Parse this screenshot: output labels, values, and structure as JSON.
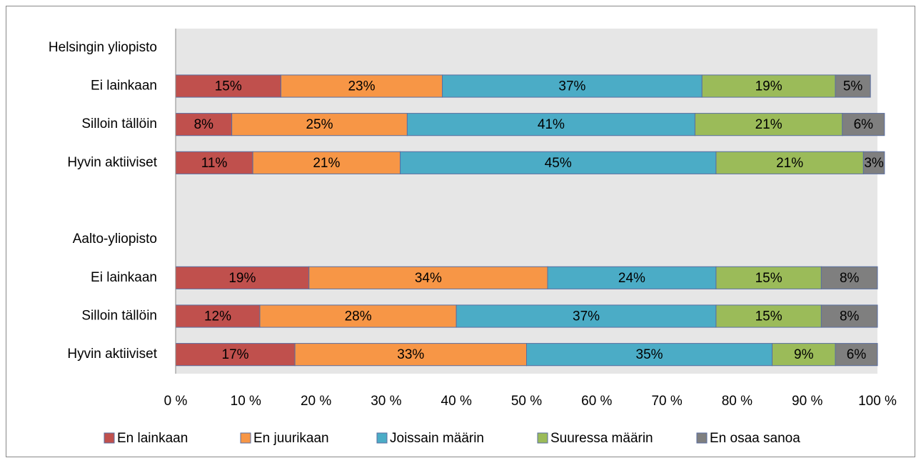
{
  "chart_data": {
    "type": "stacked-barh",
    "categories": [
      "Helsingin yliopisto",
      "Ei lainkaan",
      "Silloin tällöin",
      "Hyvin aktiiviset",
      null,
      "Aalto-yliopisto",
      "Ei lainkaan",
      "Silloin tällöin",
      "Hyvin aktiiviset"
    ],
    "series": [
      {
        "name": "En lainkaan",
        "color": "#c0504d",
        "values": [
          null,
          15,
          8,
          11,
          null,
          null,
          19,
          12,
          17
        ],
        "value_labels": [
          null,
          "15%",
          "8%",
          "11%",
          null,
          null,
          "19%",
          "12%",
          "17%"
        ]
      },
      {
        "name": "En juurikaan",
        "color": "#f79646",
        "values": [
          null,
          23,
          25,
          21,
          null,
          null,
          34,
          28,
          33
        ],
        "value_labels": [
          null,
          "23%",
          "25%",
          "21%",
          null,
          null,
          "34%",
          "28%",
          "33%"
        ]
      },
      {
        "name": "Joissain määrin",
        "color": "#4bacc6",
        "values": [
          null,
          37,
          41,
          45,
          null,
          null,
          24,
          37,
          35
        ],
        "value_labels": [
          null,
          "37%",
          "41%",
          "45%",
          null,
          null,
          "24%",
          "37%",
          "35%"
        ]
      },
      {
        "name": "Suuressa määrin",
        "color": "#9bbb59",
        "values": [
          null,
          19,
          21,
          21,
          null,
          null,
          15,
          15,
          9
        ],
        "value_labels": [
          null,
          "19%",
          "21%",
          "21%",
          null,
          null,
          "15%",
          "15%",
          "9%"
        ]
      },
      {
        "name": "En osaa sanoa",
        "color": "#7f7f7f",
        "values": [
          null,
          5,
          6,
          3,
          null,
          null,
          8,
          8,
          6
        ],
        "value_labels": [
          null,
          "5%",
          "6%",
          "3%",
          null,
          null,
          "8%",
          "8%",
          "6%"
        ]
      }
    ],
    "xlim": [
      0,
      100
    ],
    "xticks": [
      {
        "value": 0,
        "label": "0 %"
      },
      {
        "value": 10,
        "label": "10 %"
      },
      {
        "value": 20,
        "label": "20 %"
      },
      {
        "value": 30,
        "label": "30 %"
      },
      {
        "value": 40,
        "label": "40 %"
      },
      {
        "value": 50,
        "label": "50 %"
      },
      {
        "value": 60,
        "label": "60 %"
      },
      {
        "value": 70,
        "label": "70 %"
      },
      {
        "value": 80,
        "label": "80 %"
      },
      {
        "value": 90,
        "label": "90 %"
      },
      {
        "value": 100,
        "label": "100 %"
      }
    ],
    "legend": "bottom"
  }
}
